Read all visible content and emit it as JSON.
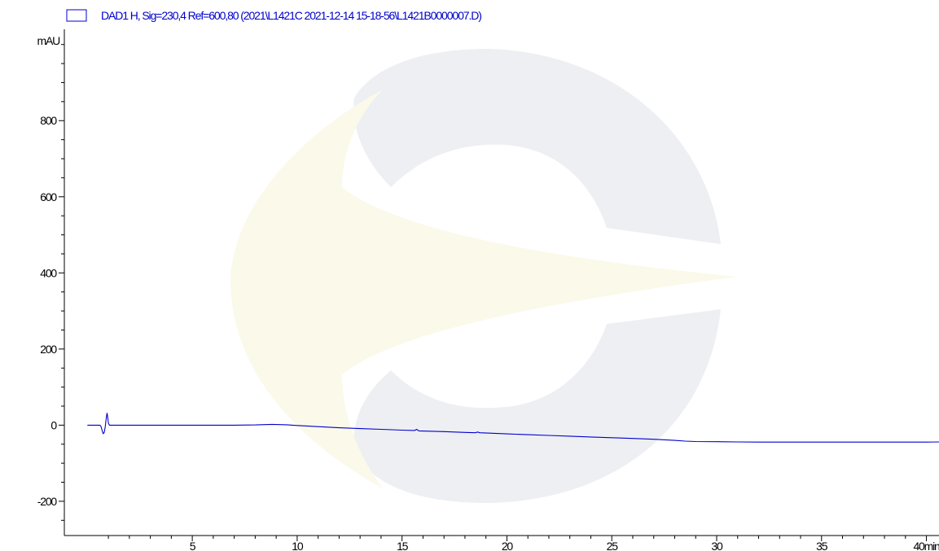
{
  "chart_data": {
    "type": "line",
    "title": "",
    "legend": {
      "label": "DAD1 H, Sig=230,4 Ref=600,80 (2021\\L1421C 2021-12-14 15-18-56\\L1421B0000007.D)",
      "placement": "top-left"
    },
    "ylabel": "mAU",
    "xlabel": "",
    "x_unit_label": "min",
    "xlim": [
      -1.1,
      40.6
    ],
    "ylim": [
      -290,
      1040
    ],
    "x_major_ticks": [
      5,
      10,
      15,
      20,
      25,
      30,
      35,
      40
    ],
    "x_tick_labels": [
      "5",
      "10",
      "15",
      "20",
      "25",
      "30",
      "35",
      "40"
    ],
    "y_major_ticks": [
      -200,
      0,
      200,
      400,
      600,
      800
    ],
    "y_tick_labels": [
      "-200",
      "0",
      "200",
      "400",
      "600",
      "800"
    ],
    "minor_tick_step_x": 1,
    "minor_tick_step_y": 50,
    "grid": false,
    "series": [
      {
        "name": "DAD1 H, Sig=230,4 Ref=600,80 (2021\\L1421C 2021-12-14 15-18-56\\L1421B0000007.D)",
        "color": "#0000cc",
        "points": [
          [
            0.0,
            0.0
          ],
          [
            0.6,
            0.0
          ],
          [
            0.65,
            -4
          ],
          [
            0.7,
            -14
          ],
          [
            0.75,
            -22
          ],
          [
            0.8,
            -20
          ],
          [
            0.85,
            -5
          ],
          [
            0.88,
            10
          ],
          [
            0.91,
            24
          ],
          [
            0.94,
            32
          ],
          [
            0.97,
            20
          ],
          [
            1.0,
            5
          ],
          [
            1.05,
            0
          ],
          [
            1.3,
            0
          ],
          [
            3.0,
            0
          ],
          [
            5.0,
            0
          ],
          [
            7.0,
            0
          ],
          [
            8.0,
            0.5
          ],
          [
            8.8,
            2
          ],
          [
            9.5,
            1
          ],
          [
            10.0,
            -1
          ],
          [
            11.0,
            -4
          ],
          [
            12.0,
            -7
          ],
          [
            13.0,
            -9
          ],
          [
            14.0,
            -11
          ],
          [
            15.0,
            -13
          ],
          [
            15.6,
            -14
          ],
          [
            15.7,
            -11
          ],
          [
            15.8,
            -15
          ],
          [
            17.0,
            -17
          ],
          [
            18.0,
            -19
          ],
          [
            18.5,
            -20
          ],
          [
            18.6,
            -18
          ],
          [
            18.7,
            -20
          ],
          [
            20.0,
            -23
          ],
          [
            21.0,
            -25
          ],
          [
            22.0,
            -27
          ],
          [
            23.0,
            -29
          ],
          [
            24.0,
            -31
          ],
          [
            25.0,
            -33
          ],
          [
            26.0,
            -35
          ],
          [
            27.0,
            -37
          ],
          [
            28.0,
            -40
          ],
          [
            28.5,
            -42
          ],
          [
            29.0,
            -43
          ],
          [
            30.0,
            -43.5
          ],
          [
            31.0,
            -44
          ],
          [
            32.0,
            -44.5
          ],
          [
            33.0,
            -44.5
          ],
          [
            34.0,
            -44.5
          ],
          [
            35.0,
            -44.5
          ],
          [
            36.0,
            -44.5
          ],
          [
            37.0,
            -44.5
          ],
          [
            38.0,
            -44.5
          ],
          [
            39.0,
            -44.5
          ],
          [
            40.0,
            -44.5
          ],
          [
            40.6,
            -44
          ]
        ]
      }
    ]
  },
  "watermark": {
    "colors": [
      "#eeeff3",
      "#fbf9ea"
    ]
  },
  "colors": {
    "axis": "#000000",
    "trace": "#0000cc",
    "background": "#ffffff"
  }
}
